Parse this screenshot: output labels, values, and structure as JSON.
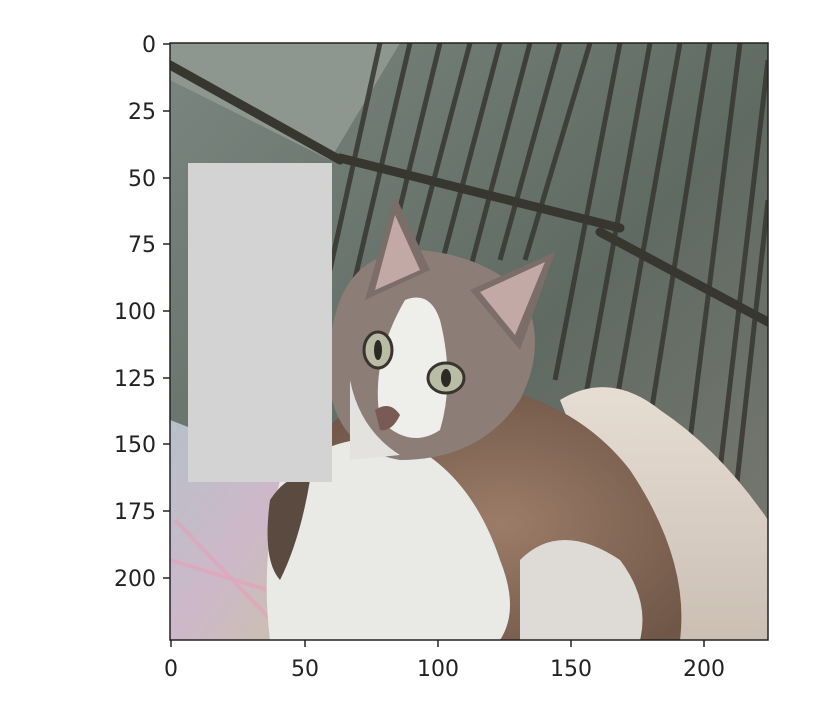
{
  "image": {
    "subject": "cat-on-blanket-in-wire-cage",
    "occlusion_fill": "#d3d3d3"
  },
  "axes": {
    "xlim": [
      0,
      224
    ],
    "ylim": [
      224,
      0
    ],
    "x_ticks": [
      0,
      50,
      100,
      150,
      200
    ],
    "y_ticks": [
      0,
      25,
      50,
      75,
      100,
      125,
      150,
      175,
      200
    ],
    "occlusion_region": {
      "x0": 6,
      "x1": 60,
      "y0": 45,
      "y1": 164
    }
  },
  "colors": {
    "axis": "#222222",
    "background": "#ffffff",
    "cage_bar": "#3b3a35",
    "fur_brown": "#8a6e5c",
    "fur_white": "#e9e9e6",
    "blanket": "#d9cfc6"
  }
}
